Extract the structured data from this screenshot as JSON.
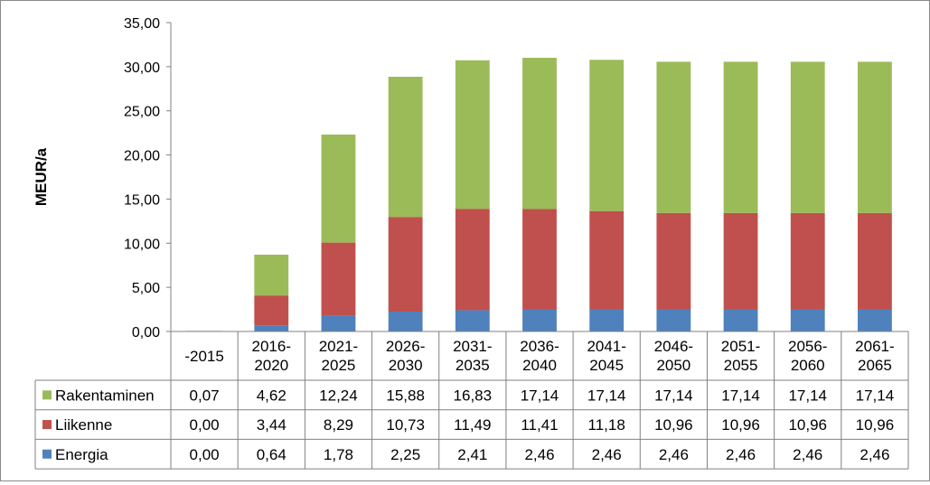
{
  "chart_data": {
    "type": "bar",
    "stacked": true,
    "categories": [
      "-2015",
      "2016-\n2020",
      "2021-\n2025",
      "2026-\n2030",
      "2031-\n2035",
      "2036-\n2040",
      "2041-\n2045",
      "2046-\n2050",
      "2051-\n2055",
      "2056-\n2060",
      "2061-\n2065"
    ],
    "series": [
      {
        "name": "Energia",
        "color": "#4F81BD",
        "values": [
          0.0,
          0.64,
          1.78,
          2.25,
          2.41,
          2.46,
          2.46,
          2.46,
          2.46,
          2.46,
          2.46
        ]
      },
      {
        "name": "Liikenne",
        "color": "#C0504D",
        "values": [
          0.0,
          3.44,
          8.29,
          10.73,
          11.49,
          11.41,
          11.18,
          10.96,
          10.96,
          10.96,
          10.96
        ]
      },
      {
        "name": "Rakentaminen",
        "color": "#9BBB59",
        "values": [
          0.07,
          4.62,
          12.24,
          15.88,
          16.83,
          17.14,
          17.14,
          17.14,
          17.14,
          17.14,
          17.14
        ]
      }
    ],
    "table_rows": [
      {
        "series": "Rakentaminen",
        "color": "#9BBB59",
        "cells": [
          "0,07",
          "4,62",
          "12,24",
          "15,88",
          "16,83",
          "17,14",
          "17,14",
          "17,14",
          "17,14",
          "17,14",
          "17,14"
        ]
      },
      {
        "series": "Liikenne",
        "color": "#C0504D",
        "cells": [
          "0,00",
          "3,44",
          "8,29",
          "10,73",
          "11,49",
          "11,41",
          "11,18",
          "10,96",
          "10,96",
          "10,96",
          "10,96"
        ]
      },
      {
        "series": "Energia",
        "color": "#4F81BD",
        "cells": [
          "0,00",
          "0,64",
          "1,78",
          "2,25",
          "2,41",
          "2,46",
          "2,46",
          "2,46",
          "2,46",
          "2,46",
          "2,46"
        ]
      }
    ],
    "ylabel": "MEUR/a",
    "ylim": [
      0,
      35
    ],
    "yticks": [
      0,
      5,
      10,
      15,
      20,
      25,
      30,
      35
    ],
    "ytick_labels": [
      "0,00",
      "5,00",
      "10,00",
      "15,00",
      "20,00",
      "25,00",
      "30,00",
      "35,00"
    ],
    "grid": false,
    "legend": "data-table"
  }
}
